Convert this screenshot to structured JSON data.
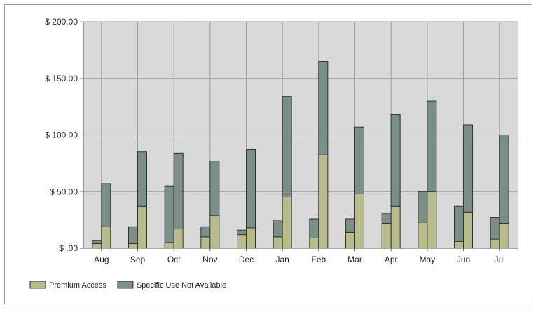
{
  "chart_data": {
    "type": "bar",
    "categories": [
      "Aug",
      "Sep",
      "Oct",
      "Nov",
      "Dec",
      "Jan",
      "Feb",
      "Mar",
      "Apr",
      "May",
      "Jun",
      "Jul"
    ],
    "y_ticks": [
      "$ .00",
      "$ 50.00",
      "$ 100.00",
      "$ 150.00",
      "$ 200.00"
    ],
    "ylim": [
      0,
      200
    ],
    "grid": true,
    "legend_position": "bottom-left",
    "bars_per_category": 2,
    "stacked": true,
    "series": [
      {
        "name": "Premium Access",
        "color": "#b8bc8a",
        "values": [
          [
            4,
            19
          ],
          [
            4,
            37
          ],
          [
            5,
            17
          ],
          [
            10,
            29
          ],
          [
            12,
            18
          ],
          [
            10,
            46
          ],
          [
            9,
            83
          ],
          [
            14,
            48
          ],
          [
            22,
            37
          ],
          [
            23,
            50
          ],
          [
            6,
            32
          ],
          [
            8,
            22
          ]
        ]
      },
      {
        "name": "Specific Use Not Available",
        "color": "#7a8f88",
        "values": [
          [
            3,
            38
          ],
          [
            15,
            48
          ],
          [
            50,
            67
          ],
          [
            9,
            48
          ],
          [
            4,
            69
          ],
          [
            15,
            88
          ],
          [
            17,
            82
          ],
          [
            12,
            59
          ],
          [
            9,
            81
          ],
          [
            27,
            80
          ],
          [
            31,
            77
          ],
          [
            19,
            78
          ]
        ]
      }
    ]
  }
}
